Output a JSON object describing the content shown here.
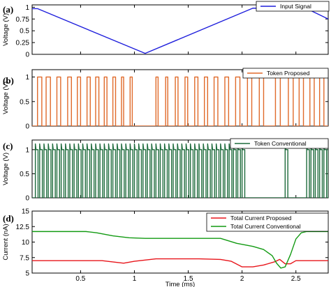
{
  "chart_data": [
    {
      "panel": "(a)",
      "type": "line",
      "xlim": [
        0.05,
        2.8
      ],
      "ylim": [
        0,
        1.05
      ],
      "yticks": [
        "0",
        "0.25",
        "0.5",
        "0.75",
        "1"
      ],
      "ylabel": "Voltage (V)",
      "xlabel": "",
      "grid": false,
      "legend": {
        "position": "top-right"
      },
      "series": [
        {
          "name": "Input Signal",
          "color": "#1f1fdc",
          "x": [
            0.05,
            0.1,
            1.1,
            2.1,
            2.6,
            2.8
          ],
          "y": [
            0.97,
            0.97,
            0.02,
            0.98,
            0.97,
            0.75
          ]
        }
      ]
    },
    {
      "panel": "(b)",
      "type": "line",
      "xlim": [
        0.05,
        2.8
      ],
      "ylim": [
        0,
        1.15
      ],
      "yticks": [
        "0",
        "0.5",
        "1"
      ],
      "ylabel": "Voltage (V)",
      "xlabel": "",
      "grid": false,
      "legend": {
        "position": "top-right"
      },
      "series": [
        {
          "name": "Token Proposed",
          "color": "#e06a2a",
          "pulse_high": 1.0,
          "pulse_starts": [
            0.1,
            0.18,
            0.28,
            0.38,
            0.47,
            0.56,
            0.64,
            0.72,
            0.8,
            0.88,
            0.96,
            1.2,
            1.29,
            1.38,
            1.47,
            1.56,
            1.65,
            1.74,
            1.84,
            1.94,
            2.05,
            2.16,
            2.31,
            2.43,
            2.53,
            2.63,
            2.72
          ],
          "pulse_widths": [
            0.04,
            0.04,
            0.035,
            0.035,
            0.03,
            0.03,
            0.03,
            0.025,
            0.025,
            0.02,
            0.02,
            0.02,
            0.02,
            0.025,
            0.025,
            0.03,
            0.03,
            0.035,
            0.035,
            0.04,
            0.04,
            0.04,
            0.045,
            0.045,
            0.04,
            0.04,
            0.04
          ]
        }
      ]
    },
    {
      "panel": "(c)",
      "type": "line",
      "xlim": [
        0.05,
        2.8
      ],
      "ylim": [
        0,
        1.2
      ],
      "yticks": [
        "0",
        "0.5",
        "1"
      ],
      "ylabel": "Voltage (V)",
      "xlabel": "",
      "grid": false,
      "legend": {
        "position": "top-right"
      },
      "series": [
        {
          "name": "Token Conventional",
          "color": "#1e6b3c",
          "pulse_high": 1.0,
          "overshoot": 1.12,
          "pulse_period": 0.04,
          "pulse_width": 0.025,
          "bursts": [
            [
              0.08,
              2.0
            ],
            [
              2.4,
              2.42
            ],
            [
              2.6,
              2.8
            ]
          ]
        }
      ]
    },
    {
      "panel": "(d)",
      "type": "line",
      "xlim": [
        0.05,
        2.8
      ],
      "ylim": [
        5,
        15
      ],
      "yticks": [
        "5",
        "7.5",
        "10",
        "12.5",
        "15"
      ],
      "xticks": [
        "0.5",
        "1",
        "1.5",
        "2",
        "2.5"
      ],
      "xtick_values": [
        0.5,
        1.0,
        1.5,
        2.0,
        2.5
      ],
      "ylabel": "Current (nA)",
      "xlabel": "Time (ms)",
      "grid": false,
      "legend": {
        "position": "top-right"
      },
      "series": [
        {
          "name": "Total Current Proposed",
          "color": "#e8141a",
          "x": [
            0.05,
            0.5,
            0.7,
            0.9,
            1.0,
            1.1,
            1.2,
            1.4,
            1.6,
            1.8,
            1.9,
            2.0,
            2.1,
            2.2,
            2.3,
            2.35,
            2.4,
            2.45,
            2.5,
            2.6,
            2.7,
            2.8
          ],
          "y": [
            7.0,
            7.0,
            7.0,
            6.6,
            6.9,
            7.1,
            7.3,
            7.3,
            7.3,
            7.2,
            6.9,
            6.0,
            6.0,
            6.3,
            6.8,
            7.2,
            6.5,
            6.5,
            7.0,
            7.0,
            7.0,
            7.0
          ]
        },
        {
          "name": "Total Current Conventional",
          "color": "#129a12",
          "x": [
            0.05,
            0.55,
            0.65,
            0.8,
            0.95,
            1.1,
            1.6,
            1.8,
            1.95,
            2.1,
            2.2,
            2.28,
            2.32,
            2.36,
            2.4,
            2.45,
            2.5,
            2.55,
            2.6,
            2.7,
            2.8
          ],
          "y": [
            11.7,
            11.7,
            11.5,
            11.0,
            10.7,
            10.6,
            10.6,
            10.6,
            9.8,
            9.3,
            8.8,
            7.8,
            6.6,
            5.8,
            6.0,
            8.0,
            10.5,
            11.5,
            11.7,
            11.7,
            11.7
          ]
        }
      ]
    }
  ]
}
